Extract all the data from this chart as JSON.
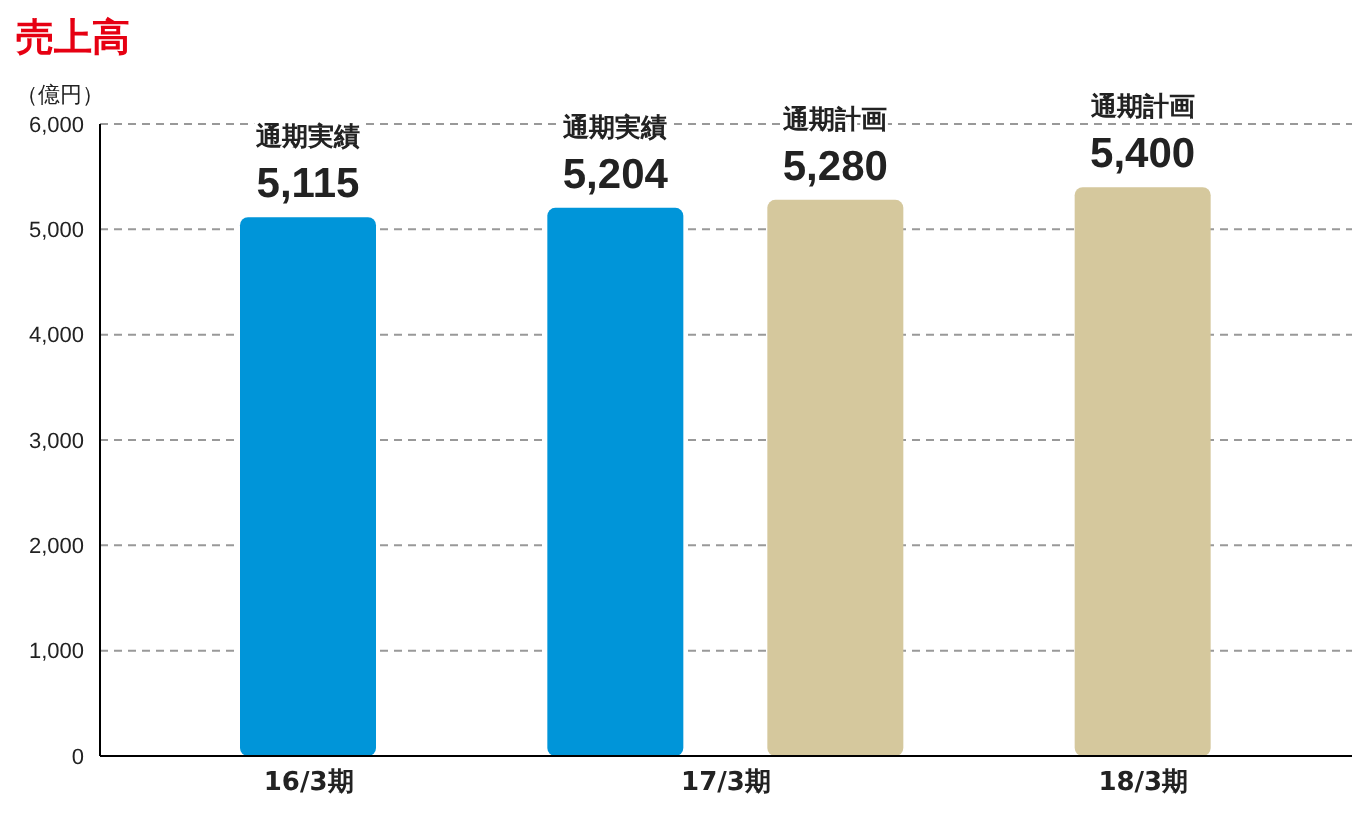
{
  "chart_data": {
    "type": "bar",
    "title": "売上高",
    "ylabel": "（億円）",
    "categories": [
      "16/3期",
      "17/3期",
      "18/3期"
    ],
    "series": [
      {
        "name": "通期実績",
        "color": "#0095d9",
        "values": [
          5115,
          5204,
          null
        ],
        "value_labels": [
          "5,115",
          "5,204",
          null
        ]
      },
      {
        "name": "通期計画",
        "color": "#d5c89d",
        "values": [
          null,
          5280,
          5400
        ],
        "value_labels": [
          null,
          "5,280",
          "5,400"
        ]
      }
    ],
    "ylim": [
      0,
      6000
    ],
    "yticks": [
      0,
      {
        "value": 1000,
        "label": "1,000"
      },
      {
        "value": 2000,
        "label": "2,000"
      },
      {
        "value": 3000,
        "label": "3,000"
      },
      {
        "value": 4000,
        "label": "4,000"
      },
      {
        "value": 5000,
        "label": "5,000"
      },
      {
        "value": 6000,
        "label": "6,000"
      }
    ],
    "grid": "y",
    "legend": false
  }
}
